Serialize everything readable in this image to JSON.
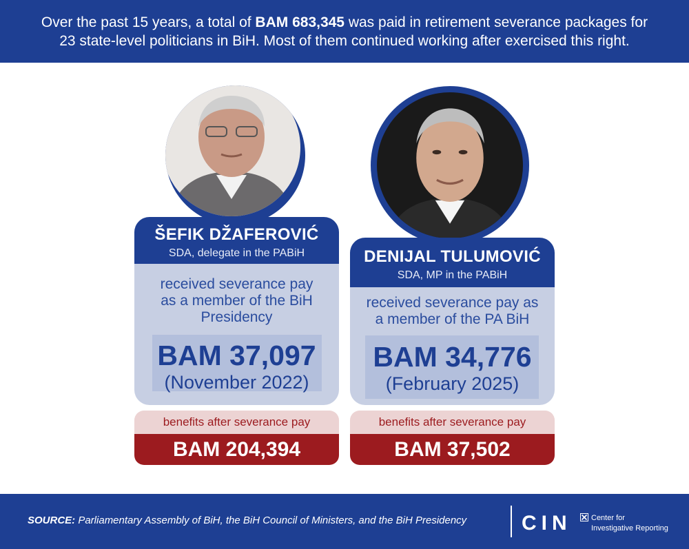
{
  "header": {
    "part1": "Over the past 15 years, a total of ",
    "total": "BAM 683,345",
    "part2": " was paid in retirement severance packages for",
    "line2": "23 state-level politicians in BiH. Most of them continued working after exercised this right."
  },
  "people": [
    {
      "name": "ŠEFIK DŽAFEROVIĆ",
      "role": "SDA, delegate in the PABiH",
      "info_lines": [
        "received severance pay",
        "as a member of the BiH",
        "Presidency"
      ],
      "amount": "BAM 37,097",
      "date": "(November 2022)",
      "benefits_label": "benefits after severance pay",
      "benefits_amount": "BAM 204,394"
    },
    {
      "name": "DENIJAL TULUMOVIĆ",
      "role": "SDA, MP in the PABiH",
      "info_lines": [
        "received severance pay as",
        "a member of the PA BiH"
      ],
      "amount": "BAM 34,776",
      "date": "(February 2025)",
      "benefits_label": "benefits after severance pay",
      "benefits_amount": "BAM 37,502"
    }
  ],
  "footer": {
    "source_label": "SOURCE:",
    "source_text": " Parliamentary Assembly of BiH, the BiH Council of Ministers, and the BiH Presidency",
    "logo": "CIN",
    "logo_line1": "Center for",
    "logo_line2": "Investigative Reporting"
  },
  "colors": {
    "navy": "#1e3f93",
    "light_blue": "#c7cfe3",
    "dark_red": "#9c1b1f",
    "pink": "#ecd3d3"
  }
}
